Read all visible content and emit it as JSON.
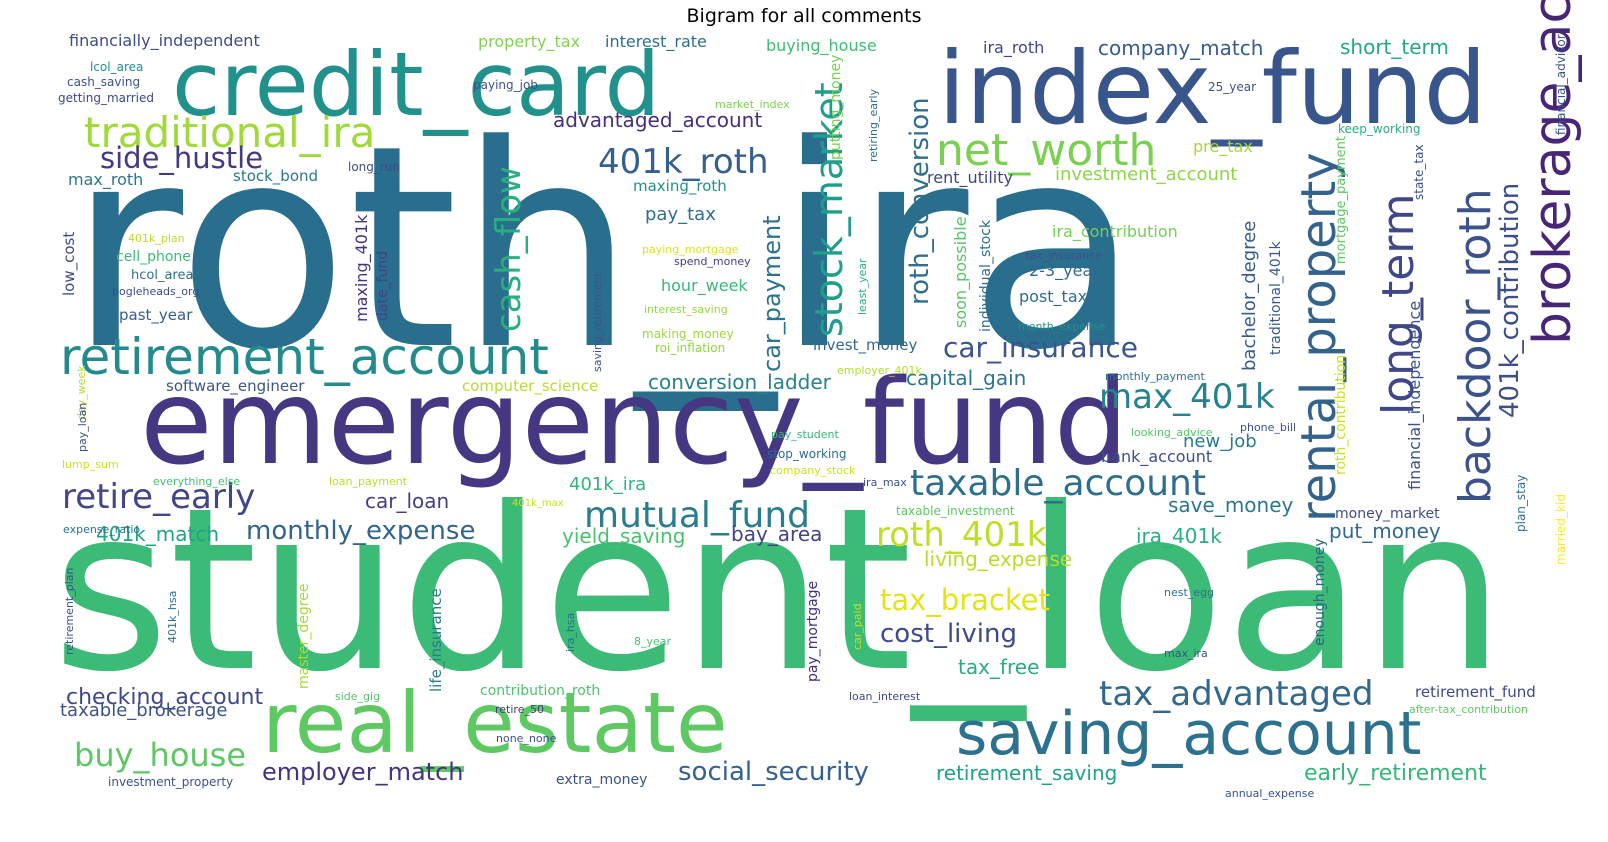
{
  "title": "Bigram for all comments",
  "words": [
    {
      "text": "roth_ira",
      "color": "#2a6e8d"
    },
    {
      "text": "student_loan",
      "color": "#3cbb76"
    },
    {
      "text": "emergency_fund",
      "color": "#453781"
    },
    {
      "text": "index_fund",
      "color": "#39568c"
    },
    {
      "text": "credit_card",
      "color": "#21918c"
    },
    {
      "text": "real_estate",
      "color": "#5ec962"
    },
    {
      "text": "saving_account",
      "color": "#2c728e"
    },
    {
      "text": "retirement_account",
      "color": "#238a8d"
    },
    {
      "text": "brokerage_account",
      "color": "#482677"
    },
    {
      "text": "rental_property",
      "color": "#33638d"
    },
    {
      "text": "backdoor_roth",
      "color": "#3b528b"
    },
    {
      "text": "long_term",
      "color": "#3f4788"
    },
    {
      "text": "traditional_ira",
      "color": "#a0da39"
    },
    {
      "text": "taxable_account",
      "color": "#2d708e"
    },
    {
      "text": "net_worth",
      "color": "#7ad151"
    },
    {
      "text": "stock_market",
      "color": "#1f9e89"
    },
    {
      "text": "cash_flow",
      "color": "#29af7f"
    },
    {
      "text": "401k_roth",
      "color": "#355f8d"
    },
    {
      "text": "mutual_fund",
      "color": "#287d8e"
    },
    {
      "text": "retire_early",
      "color": "#404688"
    },
    {
      "text": "roth_401k",
      "color": "#bddf26"
    },
    {
      "text": "tax_advantaged",
      "color": "#31688e"
    },
    {
      "text": "max_401k",
      "color": "#26828e"
    },
    {
      "text": "side_hustle",
      "color": "#443983"
    },
    {
      "text": "roth_conversion",
      "color": "#2e6f8e"
    },
    {
      "text": "car_insurance",
      "color": "#3a548c"
    },
    {
      "text": "buy_house",
      "color": "#5dc863"
    },
    {
      "text": "monthly_expense",
      "color": "#32658e"
    },
    {
      "text": "social_security",
      "color": "#34618d"
    },
    {
      "text": "tax_bracket",
      "color": "#e2e418"
    },
    {
      "text": "401k_contribution",
      "color": "#3d4e8a"
    },
    {
      "text": "car_payment",
      "color": "#2c738e"
    },
    {
      "text": "cost_living",
      "color": "#3e4a89"
    },
    {
      "text": "employer_match",
      "color": "#46337e"
    },
    {
      "text": "early_retirement",
      "color": "#35b779"
    },
    {
      "text": "checking_account",
      "color": "#3f4889"
    },
    {
      "text": "advantaged_account",
      "color": "#46307e"
    },
    {
      "text": "company_match",
      "color": "#365c8d"
    },
    {
      "text": "short_term",
      "color": "#22a884"
    },
    {
      "text": "living_expense",
      "color": "#b5de2b"
    },
    {
      "text": "taxable_brokerage",
      "color": "#3b528b"
    },
    {
      "text": "retirement_saving",
      "color": "#1fa287"
    },
    {
      "text": "conversion_ladder",
      "color": "#26828e"
    },
    {
      "text": "capital_gain",
      "color": "#2a788e"
    },
    {
      "text": "car_loan",
      "color": "#433e85"
    },
    {
      "text": "401k_match",
      "color": "#20a486"
    },
    {
      "text": "yield_saving",
      "color": "#4ac16d"
    },
    {
      "text": "bay_area",
      "color": "#414487"
    },
    {
      "text": "save_money",
      "color": "#2a788e"
    },
    {
      "text": "tax_free",
      "color": "#27ad81"
    },
    {
      "text": "ira_401k",
      "color": "#2ab07f"
    },
    {
      "text": "put_money",
      "color": "#306a8e"
    },
    {
      "text": "new_job",
      "color": "#287c8e"
    },
    {
      "text": "bank_account",
      "color": "#3c4f8a"
    },
    {
      "text": "pay_tax",
      "color": "#2c718e"
    },
    {
      "text": "hour_week",
      "color": "#37b878"
    },
    {
      "text": "401k_ira",
      "color": "#2fb47c"
    },
    {
      "text": "max_roth",
      "color": "#2a788e"
    },
    {
      "text": "investment_account",
      "color": "#8bd646"
    },
    {
      "text": "pre_tax",
      "color": "#a2da37"
    },
    {
      "text": "ira_contribution",
      "color": "#73d056"
    },
    {
      "text": "2-3_year",
      "color": "#31688e"
    },
    {
      "text": "post_tax",
      "color": "#2f6c8e"
    },
    {
      "text": "bachelor_degree",
      "color": "#365c8d"
    },
    {
      "text": "financial_independence",
      "color": "#3b528b"
    },
    {
      "text": "traditional_401k",
      "color": "#375a8c"
    },
    {
      "text": "financially_independent",
      "color": "#3d4d8a"
    },
    {
      "text": "property_tax",
      "color": "#7fd34e"
    },
    {
      "text": "interest_rate",
      "color": "#2d708e"
    },
    {
      "text": "buying_house",
      "color": "#3fbc73"
    },
    {
      "text": "ira_roth",
      "color": "#3f4788"
    },
    {
      "text": "maxing_401k",
      "color": "#46337e"
    },
    {
      "text": "date_fund",
      "color": "#414487"
    },
    {
      "text": "soon_possible",
      "color": "#56c667"
    },
    {
      "text": "individual_stock",
      "color": "#2e6e8e"
    },
    {
      "text": "rent_utility",
      "color": "#3f4788"
    },
    {
      "text": "maxing_roth",
      "color": "#21918c"
    },
    {
      "text": "putting_money",
      "color": "#75d054"
    },
    {
      "text": "invest_money",
      "color": "#31688e"
    },
    {
      "text": "stock_bond",
      "color": "#2a788e"
    },
    {
      "text": "low_cost",
      "color": "#3e4989"
    },
    {
      "text": "past_year",
      "color": "#355e8d"
    },
    {
      "text": "cell_phone",
      "color": "#3bbb75"
    },
    {
      "text": "hcol_area",
      "color": "#2d708e"
    },
    {
      "text": "software_engineer",
      "color": "#39558c"
    },
    {
      "text": "computer_science",
      "color": "#b8de29"
    },
    {
      "text": "money_market",
      "color": "#3d4d8a"
    },
    {
      "text": "roth_contribution",
      "color": "#cae11f"
    },
    {
      "text": "mortgage_payment",
      "color": "#5cc863"
    },
    {
      "text": "enough_money",
      "color": "#33638d"
    },
    {
      "text": "pay_mortgage",
      "color": "#472d7b"
    },
    {
      "text": "life_insurance",
      "color": "#2a788e"
    },
    {
      "text": "master_degree",
      "color": "#a5db36"
    },
    {
      "text": "retirement_fund",
      "color": "#3e4a89"
    },
    {
      "text": "investment_property",
      "color": "#3b528b"
    },
    {
      "text": "extra_money",
      "color": "#3a548c"
    },
    {
      "text": "contribution_roth",
      "color": "#4ec36b"
    },
    {
      "text": "married_kid",
      "color": "#fde725"
    },
    {
      "text": "plan_stay",
      "color": "#2c728e"
    },
    {
      "text": "financial_advisor",
      "color": "#3b528b"
    },
    {
      "text": "keep_working",
      "color": "#29af7f"
    },
    {
      "text": "state_tax",
      "color": "#3c4f8a"
    },
    {
      "text": "lcol_area",
      "color": "#21918c"
    },
    {
      "text": "cash_saving",
      "color": "#3b528b"
    },
    {
      "text": "getting_married",
      "color": "#3f4788"
    },
    {
      "text": "paying_job",
      "color": "#3b528b"
    },
    {
      "text": "25_year",
      "color": "#3b528b"
    },
    {
      "text": "market_index",
      "color": "#7ad151"
    },
    {
      "text": "retiring_early",
      "color": "#2e6f8e"
    },
    {
      "text": "long_run",
      "color": "#3d4d8a"
    },
    {
      "text": "401k_plan",
      "color": "#b8de29"
    },
    {
      "text": "bogleheads_org",
      "color": "#3e4a89"
    },
    {
      "text": "paying_mortgage",
      "color": "#dde318"
    },
    {
      "text": "spend_money",
      "color": "#433e85"
    },
    {
      "text": "interest_saving",
      "color": "#94d840"
    },
    {
      "text": "making_money",
      "color": "#9bd93c"
    },
    {
      "text": "roi_inflation",
      "color": "#90d743"
    },
    {
      "text": "saving_retirement",
      "color": "#3b528b"
    },
    {
      "text": "least_year",
      "color": "#2ab07f"
    },
    {
      "text": "tax_insurance",
      "color": "#3b528b"
    },
    {
      "text": "month_expense",
      "color": "#20928c"
    },
    {
      "text": "employer_401k",
      "color": "#b0dd2f"
    },
    {
      "text": "monthly_payment",
      "color": "#2e6f8e"
    },
    {
      "text": "day_week",
      "color": "#b5de2b"
    },
    {
      "text": "pay_loan",
      "color": "#3b528b"
    },
    {
      "text": "lump_sum",
      "color": "#cde11d"
    },
    {
      "text": "everything_else",
      "color": "#43bf71"
    },
    {
      "text": "loan_payment",
      "color": "#b8de29"
    },
    {
      "text": "401k_max",
      "color": "#c8e020"
    },
    {
      "text": "pay_student",
      "color": "#35b779"
    },
    {
      "text": "stop_working",
      "color": "#2f6c8e"
    },
    {
      "text": "company_stock",
      "color": "#cde11d"
    },
    {
      "text": "ira_max",
      "color": "#3b528b"
    },
    {
      "text": "taxable_investment",
      "color": "#5ec962"
    },
    {
      "text": "looking_advice",
      "color": "#52c569"
    },
    {
      "text": "phone_bill",
      "color": "#3b528b"
    },
    {
      "text": "expense_ratio",
      "color": "#2c718e"
    },
    {
      "text": "retirement_plan",
      "color": "#3b528b"
    },
    {
      "text": "401k_hsa",
      "color": "#2c718e"
    },
    {
      "text": "ira_hsa",
      "color": "#2e6f8e"
    },
    {
      "text": "8_year",
      "color": "#4ac16d"
    },
    {
      "text": "car_paid",
      "color": "#c2df23"
    },
    {
      "text": "nest_egg",
      "color": "#2d708e"
    },
    {
      "text": "max_ira",
      "color": "#3b528b"
    },
    {
      "text": "side_gig",
      "color": "#52c569"
    },
    {
      "text": "loan_interest",
      "color": "#3f4788"
    },
    {
      "text": "retire_50",
      "color": "#433e85"
    },
    {
      "text": "none_none",
      "color": "#3b528b"
    },
    {
      "text": "after-tax_contribution",
      "color": "#5ec962"
    },
    {
      "text": "annual_expense",
      "color": "#3b528b"
    }
  ]
}
